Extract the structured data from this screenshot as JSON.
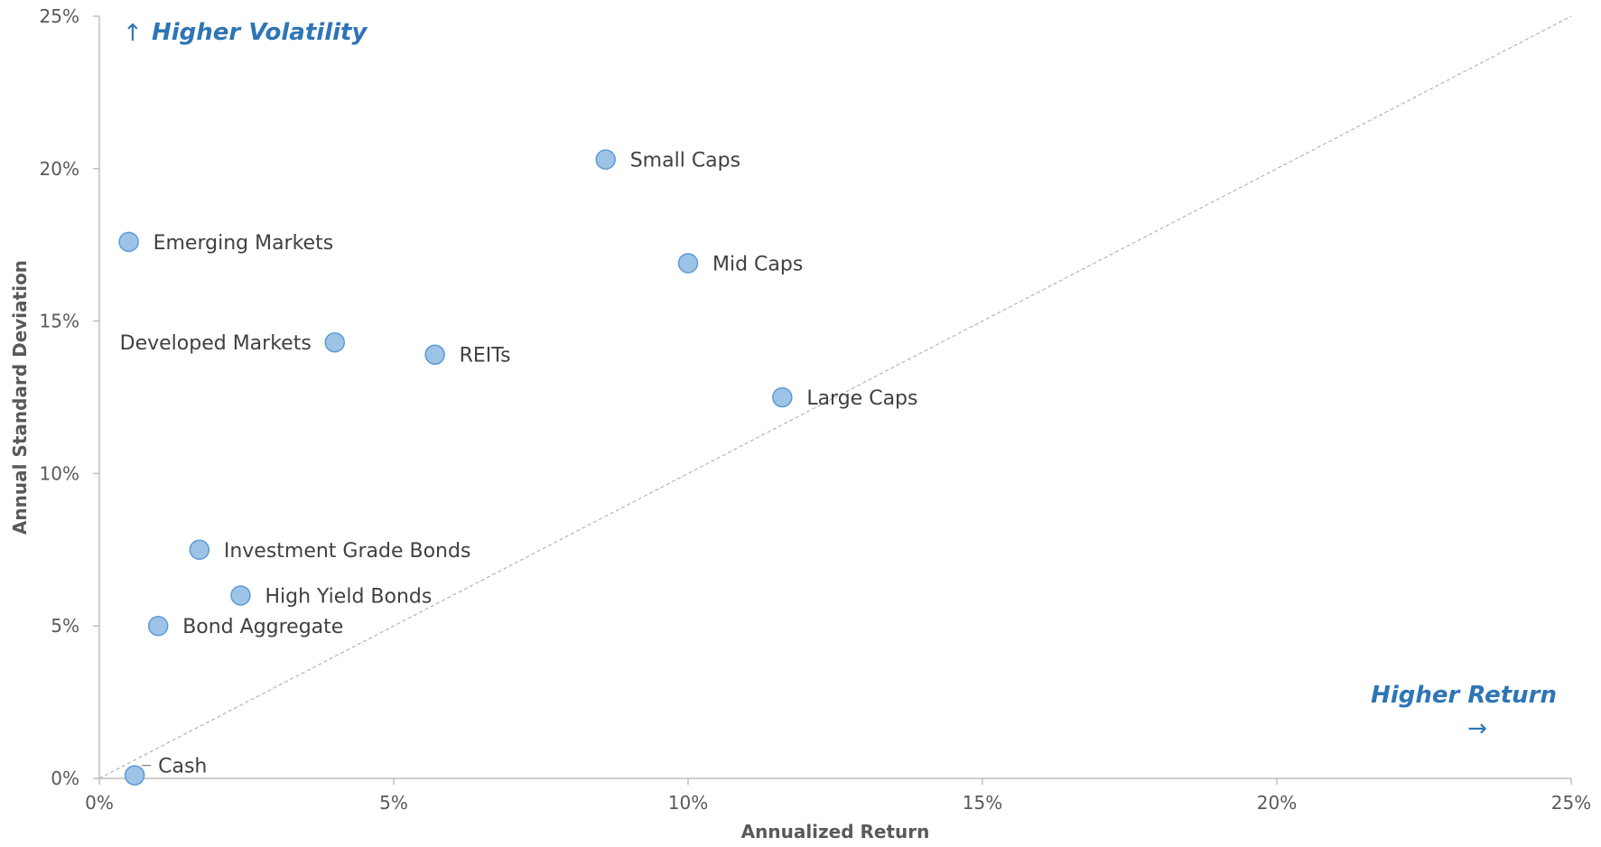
{
  "chart_data": {
    "type": "scatter",
    "xlabel": "Annualized Return",
    "ylabel": "Annual Standard Deviation",
    "xlim": [
      0,
      25
    ],
    "ylim": [
      0,
      25
    ],
    "x_ticks": [
      "0%",
      "5%",
      "10%",
      "15%",
      "20%",
      "25%"
    ],
    "y_ticks": [
      "0%",
      "5%",
      "10%",
      "15%",
      "20%",
      "25%"
    ],
    "reference_line": "y = x (dashed)",
    "marker_color": "#9DC3E6",
    "marker_edge_color": "#5B9BD5",
    "points": [
      {
        "label": "Small Caps",
        "x": 8.6,
        "y": 20.3,
        "label_side": "right"
      },
      {
        "label": "Emerging Markets",
        "x": 0.5,
        "y": 17.6,
        "label_side": "right"
      },
      {
        "label": "Mid Caps",
        "x": 10.0,
        "y": 16.9,
        "label_side": "right"
      },
      {
        "label": "Developed Markets",
        "x": 4.0,
        "y": 14.3,
        "label_side": "left"
      },
      {
        "label": "REITs",
        "x": 5.7,
        "y": 13.9,
        "label_side": "right"
      },
      {
        "label": "Large Caps",
        "x": 11.6,
        "y": 12.5,
        "label_side": "right"
      },
      {
        "label": "Investment Grade Bonds",
        "x": 1.7,
        "y": 7.5,
        "label_side": "right"
      },
      {
        "label": "High Yield Bonds",
        "x": 2.4,
        "y": 6.0,
        "label_side": "right"
      },
      {
        "label": "Bond Aggregate",
        "x": 1.0,
        "y": 5.0,
        "label_side": "right"
      },
      {
        "label": "Cash",
        "x": 0.6,
        "y": 0.1,
        "label_side": "right-up"
      }
    ]
  },
  "callouts": {
    "higher_volatility": "Higher Volatility",
    "up_arrow": "↑",
    "higher_return": "Higher Return",
    "right_arrow": "→"
  },
  "colors": {
    "accent": "#2E75B6",
    "axis": "#BFBFBF",
    "diagonal": "#A6A6A6"
  }
}
